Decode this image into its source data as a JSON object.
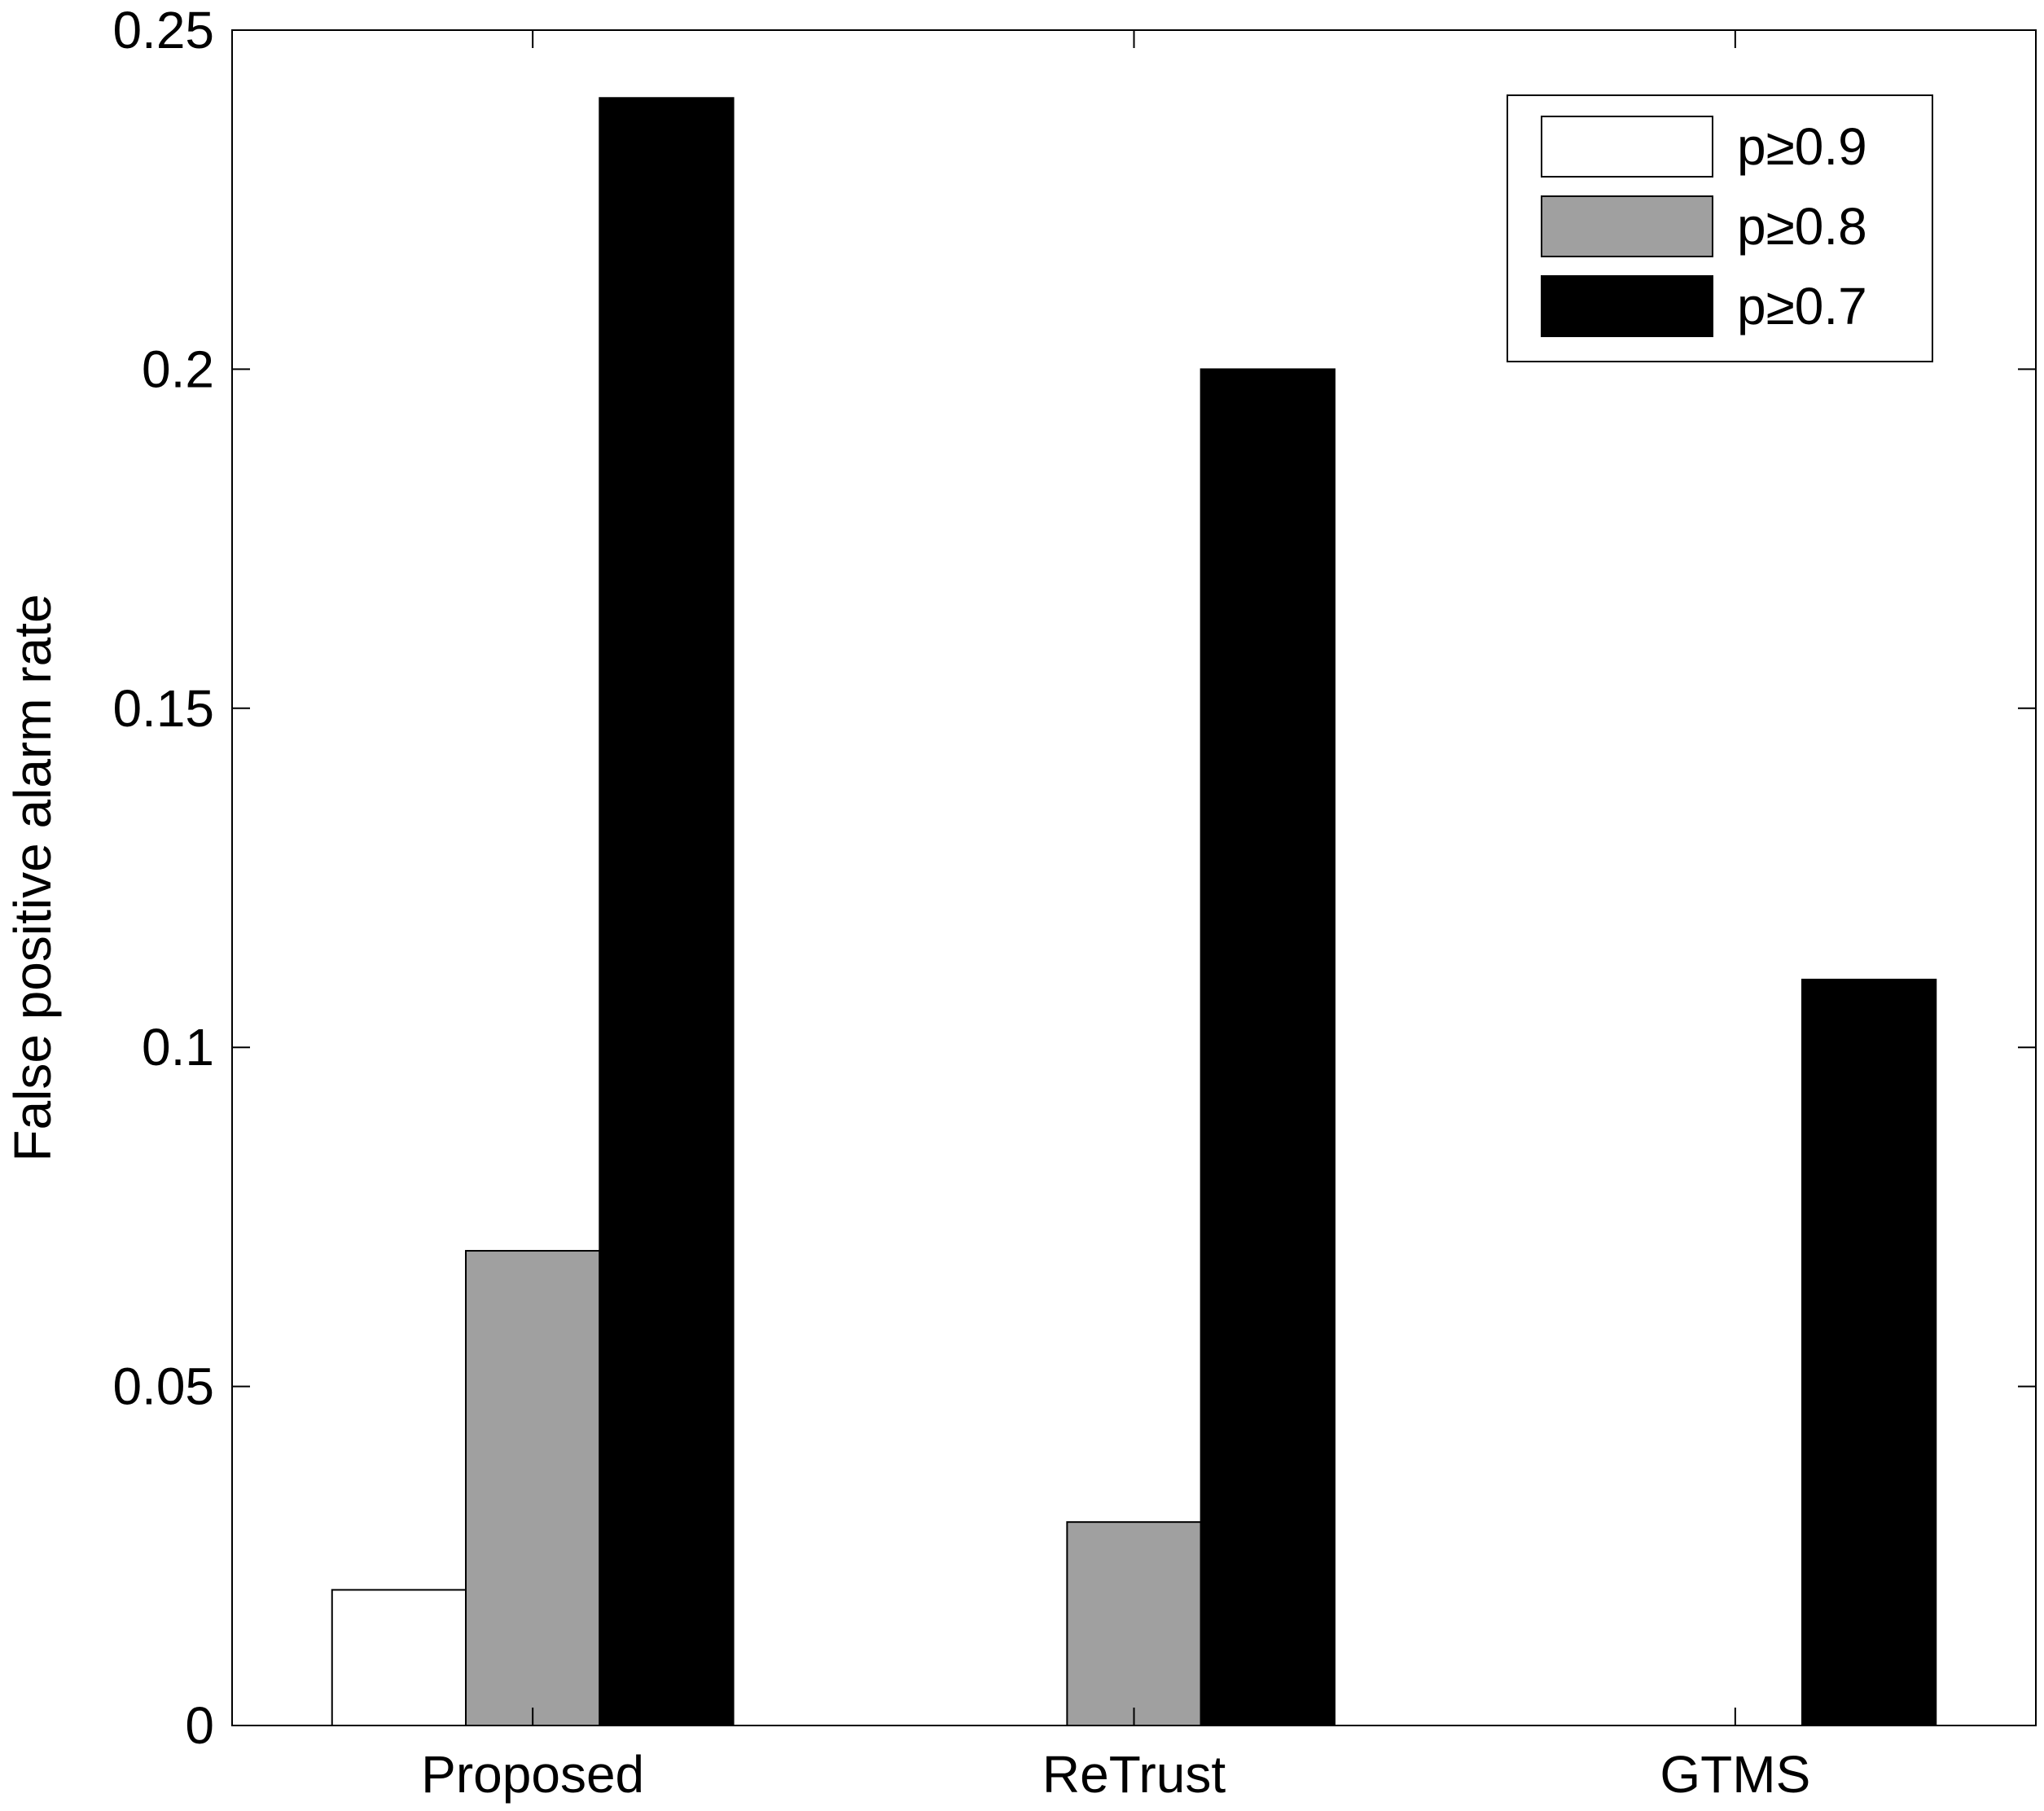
{
  "chart_data": {
    "type": "bar",
    "title": "",
    "xlabel": "",
    "ylabel": "False positive alarm rate",
    "categories": [
      "Proposed",
      "ReTrust",
      "GTMS"
    ],
    "series": [
      {
        "name": "p≥0.9",
        "color": "#ffffff",
        "values": [
          0.02,
          0,
          0
        ]
      },
      {
        "name": "p≥0.8",
        "color": "#a0a0a0",
        "values": [
          0.07,
          0.03,
          0
        ]
      },
      {
        "name": "p≥0.7",
        "color": "#000000",
        "values": [
          0.24,
          0.2,
          0.11
        ]
      }
    ],
    "ylim": [
      0,
      0.25
    ],
    "yticks": [
      0,
      0.05,
      0.1,
      0.15,
      0.2,
      0.25
    ],
    "ytick_labels": [
      "0",
      "0.05",
      "0.1",
      "0.15",
      "0.2",
      "0.25"
    ],
    "grid": false,
    "legend_position": "top-right"
  }
}
